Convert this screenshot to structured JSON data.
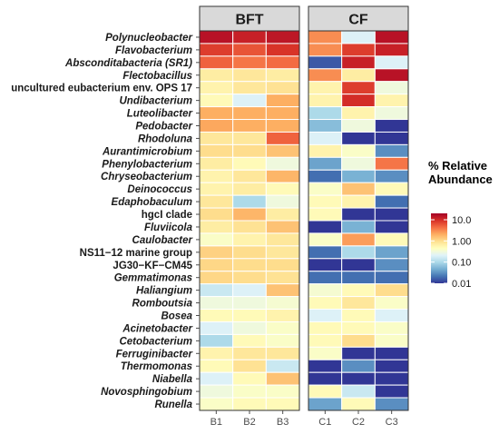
{
  "chart_data": {
    "type": "heatmap",
    "title": "",
    "panels": [
      {
        "name": "BFT",
        "samples": [
          "B1",
          "B2",
          "B3"
        ]
      },
      {
        "name": "CF",
        "samples": [
          "C1",
          "C2",
          "C3"
        ]
      }
    ],
    "rows": [
      {
        "label": "Polynucleobacter",
        "italic": true
      },
      {
        "label": "Flavobacterium",
        "italic": true
      },
      {
        "label": "Absconditabacteria (SR1)",
        "italic": true
      },
      {
        "label": "Flectobacillus",
        "italic": true
      },
      {
        "label": "uncultured eubacterium env. OPS 17",
        "italic": false
      },
      {
        "label": "Undibacterium",
        "italic": true
      },
      {
        "label": "Luteolibacter",
        "italic": true
      },
      {
        "label": "Pedobacter",
        "italic": true
      },
      {
        "label": "Rhodoluna",
        "italic": true
      },
      {
        "label": "Aurantimicrobium",
        "italic": true
      },
      {
        "label": "Phenylobacterium",
        "italic": true
      },
      {
        "label": "Chryseobacterium",
        "italic": true
      },
      {
        "label": "Deinococcus",
        "italic": true
      },
      {
        "label": "Edaphobaculum",
        "italic": true
      },
      {
        "label": "hgcI clade",
        "italic": false
      },
      {
        "label": "Fluviicola",
        "italic": true
      },
      {
        "label": "Caulobacter",
        "italic": true
      },
      {
        "label": "NS11−12 marine group",
        "italic": false
      },
      {
        "label": "JG30−KF−CM45",
        "italic": false
      },
      {
        "label": "Gemmatimonas",
        "italic": true
      },
      {
        "label": "Haliangium",
        "italic": true
      },
      {
        "label": "Romboutsia",
        "italic": true
      },
      {
        "label": "Bosea",
        "italic": true
      },
      {
        "label": "Acinetobacter",
        "italic": true
      },
      {
        "label": "Cetobacterium",
        "italic": true
      },
      {
        "label": "Ferruginibacter",
        "italic": true
      },
      {
        "label": "Thermomonas",
        "italic": true
      },
      {
        "label": "Niabella",
        "italic": true
      },
      {
        "label": "Novosphingobium",
        "italic": true
      },
      {
        "label": "Runella",
        "italic": true
      }
    ],
    "values": [
      [
        15.0,
        12.0,
        14.0,
        3.0,
        0.2,
        15.0
      ],
      [
        8.0,
        6.0,
        9.0,
        3.0,
        8.0,
        12.0
      ],
      [
        5.0,
        4.0,
        4.5,
        0.015,
        12.0,
        0.2
      ],
      [
        0.7,
        0.8,
        0.7,
        3.0,
        0.7,
        15.0
      ],
      [
        0.6,
        0.8,
        0.9,
        0.6,
        8.0,
        0.3
      ],
      [
        0.5,
        0.2,
        2.0,
        0.6,
        10.0,
        0.6
      ],
      [
        2.0,
        2.0,
        2.0,
        0.1,
        0.6,
        0.3
      ],
      [
        2.2,
        2.0,
        2.0,
        0.06,
        0.3,
        0.01
      ],
      [
        0.8,
        0.8,
        5.0,
        0.2,
        0.01,
        0.01
      ],
      [
        1.0,
        1.0,
        1.5,
        0.6,
        0.4,
        0.03
      ],
      [
        0.7,
        0.5,
        0.3,
        0.04,
        0.3,
        4.0
      ],
      [
        0.6,
        0.8,
        1.8,
        0.02,
        0.05,
        0.03
      ],
      [
        0.6,
        0.7,
        0.5,
        0.4,
        1.5,
        0.5
      ],
      [
        0.8,
        0.1,
        0.3,
        0.5,
        0.6,
        0.02
      ],
      [
        1.0,
        1.8,
        0.7,
        0.5,
        0.01,
        0.01
      ],
      [
        0.7,
        0.9,
        1.5,
        0.01,
        0.05,
        0.01
      ],
      [
        0.4,
        0.6,
        0.8,
        0.4,
        2.5,
        0.5
      ],
      [
        1.2,
        1.0,
        0.8,
        0.02,
        0.1,
        0.04
      ],
      [
        1.1,
        1.0,
        1.0,
        0.01,
        0.01,
        0.03
      ],
      [
        1.1,
        1.0,
        0.9,
        0.02,
        0.02,
        0.02
      ],
      [
        0.15,
        0.2,
        1.5,
        0.35,
        0.5,
        1.0
      ],
      [
        0.3,
        0.3,
        0.35,
        0.5,
        0.8,
        0.4
      ],
      [
        0.5,
        0.5,
        0.6,
        0.2,
        0.5,
        0.2
      ],
      [
        0.2,
        0.3,
        0.4,
        0.5,
        0.5,
        0.4
      ],
      [
        0.1,
        0.5,
        0.4,
        0.5,
        1.0,
        0.4
      ],
      [
        0.6,
        0.8,
        0.8,
        0.4,
        0.01,
        0.01
      ],
      [
        0.5,
        0.9,
        0.15,
        0.01,
        0.03,
        0.01
      ],
      [
        0.2,
        0.5,
        1.5,
        0.01,
        0.01,
        0.01
      ],
      [
        0.3,
        0.4,
        0.4,
        0.5,
        0.15,
        0.01
      ],
      [
        0.4,
        0.5,
        0.5,
        0.04,
        0.5,
        0.03
      ]
    ],
    "legend": {
      "title_line1": "% Relative",
      "title_line2": "Abundance",
      "scale": "log",
      "placement": "right",
      "ticks": [
        {
          "value": 10,
          "label": "10.0"
        },
        {
          "value": 1,
          "label": "1.00"
        },
        {
          "value": 0.1,
          "label": "0.10"
        },
        {
          "value": 0.01,
          "label": "0.01"
        }
      ],
      "range": [
        0.01,
        20
      ]
    },
    "colors": {
      "palette": [
        "#313695",
        "#4575b4",
        "#74add1",
        "#abd9e9",
        "#e0f3f8",
        "#ffffbf",
        "#fee090",
        "#fdae61",
        "#f46d43",
        "#d73027",
        "#a50026"
      ],
      "panel_strip_fill": "#d9d9d9",
      "panel_strip_stroke": "#333333",
      "panel_border": "#333333",
      "tick_color": "#4d4d4d",
      "cell_border": "#ffffff"
    },
    "grid": false
  }
}
